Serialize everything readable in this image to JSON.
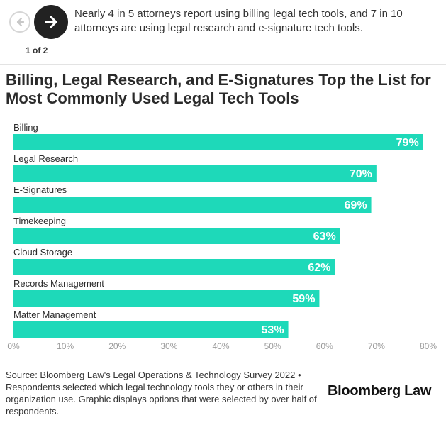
{
  "nav": {
    "pager_text": "1 of 2",
    "intro_text": "Nearly 4 in 5 attorneys report using billing legal tech tools, and 7 in 10 attorneys are using legal research and e-signature tech tools."
  },
  "footer": {
    "source": "Source: Bloomberg Law's Legal Operations & Technology Survey 2022 • Respondents selected which legal technology tools they or others in their organization use. Graphic displays options that were selected by over half of respondents.",
    "brand": "Bloomberg Law"
  },
  "colors": {
    "bar": "#1ed9b9",
    "text": "#2b2b2b",
    "axis": "#999999"
  },
  "chart_data": {
    "type": "bar",
    "orientation": "horizontal",
    "title": "Billing, Legal Research, and E-Signatures Top the List for Most Commonly Used Legal Tech Tools",
    "categories": [
      "Billing",
      "Legal Research",
      "E-Signatures",
      "Timekeeping",
      "Cloud Storage",
      "Records Management",
      "Matter Management"
    ],
    "values": [
      79,
      70,
      69,
      63,
      62,
      59,
      53
    ],
    "value_labels": [
      "79%",
      "70%",
      "69%",
      "63%",
      "62%",
      "59%",
      "53%"
    ],
    "xlim": [
      0,
      80
    ],
    "x_ticks": [
      0,
      10,
      20,
      30,
      40,
      50,
      60,
      70,
      80
    ],
    "x_tick_labels": [
      "0%",
      "10%",
      "20%",
      "30%",
      "40%",
      "50%",
      "60%",
      "70%",
      "80%"
    ],
    "grid": false,
    "legend": "none"
  }
}
